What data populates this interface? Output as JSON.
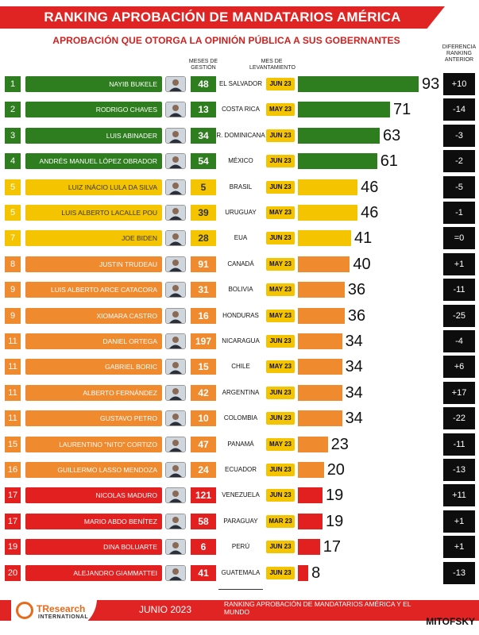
{
  "header": {
    "title": "RANKING APROBACIÓN DE MANDATARIOS AMÉRICA",
    "subtitle": "APROBACIÓN QUE OTORGA LA OPINIÓN PÚBLICA A SUS GOBERNANTES",
    "col_months": "MESES DE GESTIÓN",
    "col_survey": "MES DE LEVANTAMIENTO",
    "col_diff": "DIFERENCIA RANKING ANTERIOR"
  },
  "colors": {
    "green": "#2e7d1e",
    "yellow": "#f5c400",
    "orange": "#ef8a2e",
    "red": "#e32020",
    "diff_bg": "#0d0d0d"
  },
  "chart_data": {
    "type": "bar",
    "title": "RANKING APROBACIÓN DE MANDATARIOS AMÉRICA",
    "subtitle": "APROBACIÓN QUE OTORGA LA OPINIÓN PÚBLICA A SUS GOBERNANTES",
    "rows": [
      {
        "rank": "1",
        "name": "NAYIB BUKELE",
        "months": "48",
        "country": "EL SALVADOR",
        "date": "JUN 23",
        "value": 93,
        "diff": "+10",
        "color": "green"
      },
      {
        "rank": "2",
        "name": "RODRIGO CHAVES",
        "months": "13",
        "country": "COSTA RICA",
        "date": "MAY 23",
        "value": 71,
        "diff": "-14",
        "color": "green"
      },
      {
        "rank": "3",
        "name": "LUIS ABINADER",
        "months": "34",
        "country": "R. DOMINICANA",
        "date": "JUN 23",
        "value": 63,
        "diff": "-3",
        "color": "green"
      },
      {
        "rank": "4",
        "name": "ANDRÉS MANUEL LÓPEZ OBRADOR",
        "months": "54",
        "country": "MÉXICO",
        "date": "JUN 23",
        "value": 61,
        "diff": "-2",
        "color": "green"
      },
      {
        "rank": "5",
        "name": "LUIZ INÁCIO LULA DA SILVA",
        "months": "5",
        "country": "BRASIL",
        "date": "JUN 23",
        "value": 46,
        "diff": "-5",
        "color": "yellow"
      },
      {
        "rank": "5",
        "name": "LUIS ALBERTO LACALLE POU",
        "months": "39",
        "country": "URUGUAY",
        "date": "MAY 23",
        "value": 46,
        "diff": "-1",
        "color": "yellow"
      },
      {
        "rank": "7",
        "name": "JOE BIDEN",
        "months": "28",
        "country": "EUA",
        "date": "JUN 23",
        "value": 41,
        "diff": "=0",
        "color": "yellow"
      },
      {
        "rank": "8",
        "name": "JUSTIN TRUDEAU",
        "months": "91",
        "country": "CANADÁ",
        "date": "MAY 23",
        "value": 40,
        "diff": "+1",
        "color": "orange"
      },
      {
        "rank": "9",
        "name": "LUIS ALBERTO ARCE CATACORA",
        "months": "31",
        "country": "BOLIVIA",
        "date": "MAY 23",
        "value": 36,
        "diff": "-11",
        "color": "orange"
      },
      {
        "rank": "9",
        "name": "XIOMARA CASTRO",
        "months": "16",
        "country": "HONDURAS",
        "date": "MAY 23",
        "value": 36,
        "diff": "-25",
        "color": "orange"
      },
      {
        "rank": "11",
        "name": "DANIEL ORTEGA",
        "months": "197",
        "country": "NICARAGUA",
        "date": "JUN 23",
        "value": 34,
        "diff": "-4",
        "color": "orange"
      },
      {
        "rank": "11",
        "name": "GABRIEL BORIC",
        "months": "15",
        "country": "CHILE",
        "date": "MAY 23",
        "value": 34,
        "diff": "+6",
        "color": "orange"
      },
      {
        "rank": "11",
        "name": "ALBERTO FERNÁNDEZ",
        "months": "42",
        "country": "ARGENTINA",
        "date": "JUN 23",
        "value": 34,
        "diff": "+17",
        "color": "orange"
      },
      {
        "rank": "11",
        "name": "GUSTAVO PETRO",
        "months": "10",
        "country": "COLOMBIA",
        "date": "JUN 23",
        "value": 34,
        "diff": "-22",
        "color": "orange"
      },
      {
        "rank": "15",
        "name": "LAURENTINO \"NITO\" CORTIZO",
        "months": "47",
        "country": "PANAMÁ",
        "date": "MAY 23",
        "value": 23,
        "diff": "-11",
        "color": "orange"
      },
      {
        "rank": "16",
        "name": "GUILLERMO LASSO MENDOZA",
        "months": "24",
        "country": "ECUADOR",
        "date": "JUN 23",
        "value": 20,
        "diff": "-13",
        "color": "orange"
      },
      {
        "rank": "17",
        "name": "NICOLAS MADURO",
        "months": "121",
        "country": "VENEZUELA",
        "date": "JUN 23",
        "value": 19,
        "diff": "+11",
        "color": "red"
      },
      {
        "rank": "17",
        "name": "MARIO ABDO BENÍTEZ",
        "months": "58",
        "country": "PARAGUAY",
        "date": "MAR 23",
        "value": 19,
        "diff": "+1",
        "color": "red"
      },
      {
        "rank": "19",
        "name": "DINA BOLUARTE",
        "months": "6",
        "country": "PERÚ",
        "date": "JUN 23",
        "value": 17,
        "diff": "+1",
        "color": "red"
      },
      {
        "rank": "20",
        "name": "ALEJANDRO GIAMMATTEI",
        "months": "41",
        "country": "GUATEMALA",
        "date": "JUN 23",
        "value": 8,
        "diff": "-13",
        "color": "red"
      }
    ]
  },
  "footer": {
    "logo_left_brand": "TResearch",
    "logo_left_sub": "INTERNATIONAL",
    "date": "JUNIO 2023",
    "caption": "RANKING APROBACIÓN DE MANDATARIOS AMÉRICA Y EL MUNDO",
    "logo_right_brand": "MITOFSKY"
  }
}
